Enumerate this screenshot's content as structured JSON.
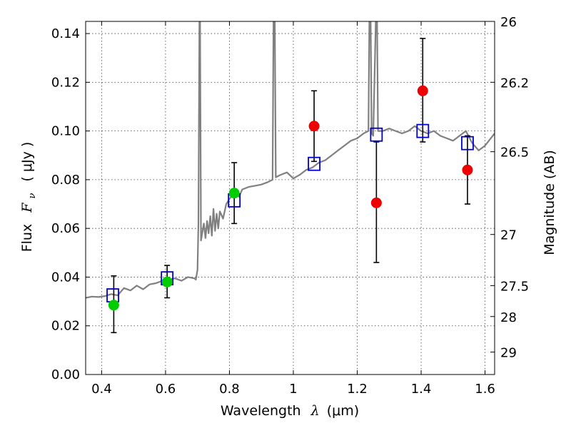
{
  "chart_data": {
    "type": "scatter",
    "xlabel_text": "Wavelength",
    "xlabel_symbol": "λ",
    "xlabel_unit": "(μm)",
    "ylabel_text": "Flux",
    "ylabel_symbol": "F",
    "ylabel_subscript": "ν",
    "ylabel_unit": "( μJy )",
    "y2label": "Magnitude (AB)",
    "xlim": [
      0.35,
      1.63
    ],
    "ylim": [
      0,
      0.145
    ],
    "grid": true,
    "x_ticks": [
      0.4,
      0.6,
      0.8,
      1.0,
      1.2,
      1.4,
      1.6
    ],
    "x_tick_labels": [
      "0.4",
      "0.6",
      "0.8",
      "1",
      "1.2",
      "1.4",
      "1.6"
    ],
    "y_ticks": [
      0,
      0.02,
      0.04,
      0.06,
      0.08,
      0.1,
      0.12,
      0.14
    ],
    "y_tick_labels": [
      "0.00",
      "0.02",
      "0.04",
      "0.06",
      "0.08",
      "0.10",
      "0.12",
      "0.14"
    ],
    "y2_ticks": [
      {
        "flux": 0.145,
        "label": "26"
      },
      {
        "flux": 0.12,
        "label": "26.2"
      },
      {
        "flux": 0.0915,
        "label": "26.5"
      },
      {
        "flux": 0.0575,
        "label": "27"
      },
      {
        "flux": 0.0365,
        "label": "27.5"
      },
      {
        "flux": 0.0238,
        "label": "28"
      },
      {
        "flux": 0.0092,
        "label": "29"
      }
    ],
    "series": [
      {
        "name": "model spectrum",
        "kind": "line",
        "color": "#808080",
        "points": [
          [
            0.35,
            0.0315
          ],
          [
            0.37,
            0.032
          ],
          [
            0.39,
            0.0318
          ],
          [
            0.41,
            0.0322
          ],
          [
            0.43,
            0.033
          ],
          [
            0.45,
            0.0325
          ],
          [
            0.47,
            0.0355
          ],
          [
            0.49,
            0.0345
          ],
          [
            0.51,
            0.0365
          ],
          [
            0.53,
            0.035
          ],
          [
            0.55,
            0.037
          ],
          [
            0.57,
            0.0375
          ],
          [
            0.59,
            0.0385
          ],
          [
            0.61,
            0.039
          ],
          [
            0.63,
            0.0395
          ],
          [
            0.65,
            0.0385
          ],
          [
            0.67,
            0.04
          ],
          [
            0.69,
            0.0395
          ],
          [
            0.695,
            0.039
          ],
          [
            0.7,
            0.043
          ],
          [
            0.703,
            0.062
          ],
          [
            0.706,
            0.145
          ],
          [
            0.708,
            0.145
          ],
          [
            0.711,
            0.055
          ],
          [
            0.72,
            0.062
          ],
          [
            0.725,
            0.056
          ],
          [
            0.73,
            0.063
          ],
          [
            0.735,
            0.058
          ],
          [
            0.74,
            0.065
          ],
          [
            0.745,
            0.057
          ],
          [
            0.75,
            0.068
          ],
          [
            0.755,
            0.059
          ],
          [
            0.76,
            0.066
          ],
          [
            0.765,
            0.06
          ],
          [
            0.77,
            0.067
          ],
          [
            0.78,
            0.064
          ],
          [
            0.79,
            0.07
          ],
          [
            0.8,
            0.072
          ],
          [
            0.81,
            0.074
          ],
          [
            0.82,
            0.075
          ],
          [
            0.83,
            0.073
          ],
          [
            0.84,
            0.076
          ],
          [
            0.86,
            0.077
          ],
          [
            0.88,
            0.0775
          ],
          [
            0.9,
            0.078
          ],
          [
            0.92,
            0.079
          ],
          [
            0.935,
            0.08
          ],
          [
            0.938,
            0.145
          ],
          [
            0.942,
            0.145
          ],
          [
            0.945,
            0.081
          ],
          [
            0.96,
            0.082
          ],
          [
            0.98,
            0.083
          ],
          [
            1.0,
            0.0805
          ],
          [
            1.02,
            0.082
          ],
          [
            1.04,
            0.084
          ],
          [
            1.06,
            0.085
          ],
          [
            1.08,
            0.087
          ],
          [
            1.1,
            0.088
          ],
          [
            1.12,
            0.09
          ],
          [
            1.14,
            0.092
          ],
          [
            1.16,
            0.094
          ],
          [
            1.18,
            0.096
          ],
          [
            1.2,
            0.097
          ],
          [
            1.22,
            0.099
          ],
          [
            1.235,
            0.1
          ],
          [
            1.238,
            0.145
          ],
          [
            1.242,
            0.145
          ],
          [
            1.245,
            0.099
          ],
          [
            1.25,
            0.098
          ],
          [
            1.258,
            0.145
          ],
          [
            1.262,
            0.145
          ],
          [
            1.265,
            0.1
          ],
          [
            1.28,
            0.1
          ],
          [
            1.3,
            0.101
          ],
          [
            1.32,
            0.1
          ],
          [
            1.34,
            0.099
          ],
          [
            1.36,
            0.1
          ],
          [
            1.38,
            0.102
          ],
          [
            1.4,
            0.1
          ],
          [
            1.42,
            0.099
          ],
          [
            1.44,
            0.1
          ],
          [
            1.46,
            0.098
          ],
          [
            1.48,
            0.097
          ],
          [
            1.5,
            0.096
          ],
          [
            1.52,
            0.098
          ],
          [
            1.54,
            0.1
          ],
          [
            1.56,
            0.095
          ],
          [
            1.58,
            0.092
          ],
          [
            1.6,
            0.094
          ],
          [
            1.63,
            0.099
          ]
        ]
      },
      {
        "name": "model photometry",
        "kind": "open-square",
        "color": "#0000cc",
        "points": [
          [
            0.435,
            0.0325
          ],
          [
            0.605,
            0.0395
          ],
          [
            0.815,
            0.0715
          ],
          [
            1.065,
            0.0865
          ],
          [
            1.26,
            0.0985
          ],
          [
            1.405,
            0.1
          ],
          [
            1.545,
            0.095
          ]
        ]
      },
      {
        "name": "detections (green)",
        "kind": "filled-circle",
        "color": "#00cc00",
        "points": [
          {
            "x": 0.438,
            "y": 0.0285,
            "yerr": [
              0.0172,
              0.0405
            ]
          },
          {
            "x": 0.605,
            "y": 0.038,
            "yerr": [
              0.0315,
              0.0448
            ]
          },
          {
            "x": 0.815,
            "y": 0.0745,
            "yerr": [
              0.062,
              0.087
            ]
          }
        ]
      },
      {
        "name": "detections (red)",
        "kind": "filled-circle",
        "color": "#ee0000",
        "points": [
          {
            "x": 1.065,
            "y": 0.102,
            "yerr": [
              0.0875,
              0.1165
            ]
          },
          {
            "x": 1.26,
            "y": 0.0705,
            "yerr": [
              0.046,
              0.0955
            ]
          },
          {
            "x": 1.405,
            "y": 0.1165,
            "yerr": [
              0.0955,
              0.138
            ]
          },
          {
            "x": 1.545,
            "y": 0.084,
            "yerr": [
              0.07,
              0.098
            ]
          }
        ]
      }
    ]
  }
}
